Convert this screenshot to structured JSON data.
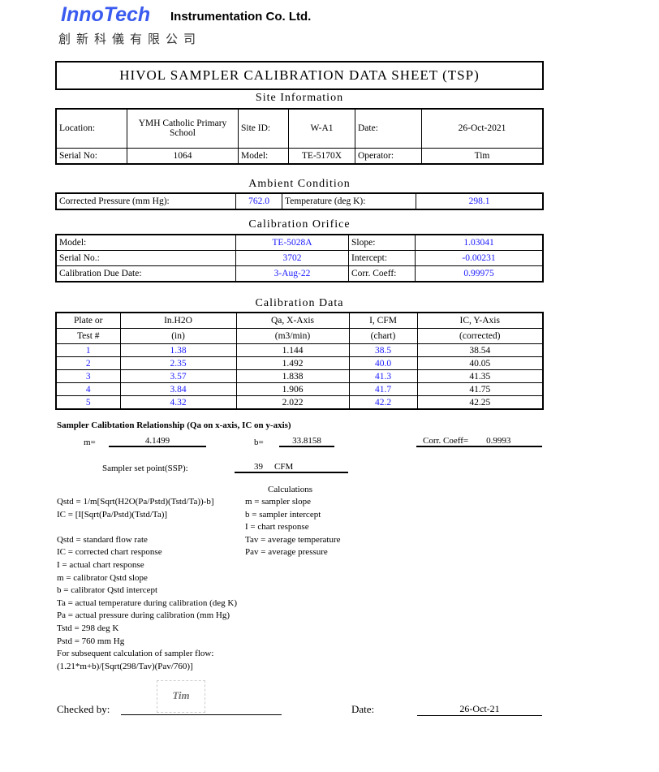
{
  "header": {
    "logo": "InnoTech",
    "company": "Instrumentation Co. Ltd.",
    "company_cn": "創新科儀有限公司"
  },
  "title": "HIVOL SAMPLER CALIBRATION  DATA SHEET (TSP)",
  "site": {
    "heading": "Site Information",
    "location_label": "Location:",
    "location": "YMH Catholic Primary School",
    "site_id_label": "Site ID:",
    "site_id": "W-A1",
    "date_label": "Date:",
    "date": "26-Oct-2021",
    "serial_label": "Serial No:",
    "serial": "1064",
    "model_label": "Model:",
    "model": "TE-5170X",
    "operator_label": "Operator:",
    "operator": "Tim"
  },
  "ambient": {
    "heading": "Ambient Condition",
    "pressure_label": "Corrected Pressure (mm Hg):",
    "pressure": "762.0",
    "temp_label": "Temperature (deg K):",
    "temp": "298.1"
  },
  "orifice": {
    "heading": "Calibration Orifice",
    "model_label": "Model:",
    "model": "TE-5028A",
    "slope_label": "Slope:",
    "slope": "1.03041",
    "serial_label": "Serial No.:",
    "serial": "3702",
    "intercept_label": "Intercept:",
    "intercept": "-0.00231",
    "due_label": "Calibration Due Date:",
    "due": "3-Aug-22",
    "corr_label": "Corr. Coeff:",
    "corr": "0.99975"
  },
  "caldata": {
    "heading": "Calibration Data",
    "headers1": [
      "Plate or",
      "In.H2O",
      "Qa, X-Axis",
      "I, CFM",
      "IC, Y-Axis"
    ],
    "headers2": [
      "Test #",
      "(in)",
      "(m3/min)",
      "(chart)",
      "(corrected)"
    ],
    "rows": [
      [
        "1",
        "1.38",
        "1.144",
        "38.5",
        "38.54"
      ],
      [
        "2",
        "2.35",
        "1.492",
        "40.0",
        "40.05"
      ],
      [
        "3",
        "3.57",
        "1.838",
        "41.3",
        "41.35"
      ],
      [
        "4",
        "3.84",
        "1.906",
        "41.7",
        "41.75"
      ],
      [
        "5",
        "4.32",
        "2.022",
        "42.2",
        "42.25"
      ]
    ]
  },
  "relationship": {
    "heading": "Sampler Calibtation Relationship (Qa on x-axis, IC on y-axis)",
    "m_label": "m=",
    "m": "4.1499",
    "b_label": "b=",
    "b": "33.8158",
    "corr_label": "Corr. Coeff=",
    "corr": "0.9993",
    "ssp_label": "Sampler set point(SSP):",
    "ssp": "39",
    "ssp_unit": "CFM"
  },
  "calc": {
    "heading": "Calculations",
    "left": [
      "Qstd = 1/m[Sqrt(H2O(Pa/Pstd)(Tstd/Ta))-b]",
      "IC = [I[Sqrt(Pa/Pstd)(Tstd/Ta)]",
      "",
      "Qstd = standard flow rate",
      "IC = corrected chart response",
      "I = actual chart response",
      "m  = calibrator Qstd slope",
      "b  = calibrator Qstd intercept",
      "Ta = actual temperature during calibration (deg K)",
      "Pa = actual pressure during calibration (mm Hg)",
      "Tstd = 298 deg K",
      "Pstd = 760 mm Hg",
      "For subsequent calculation of sampler flow:",
      "(1.21*m+b)/[Sqrt(298/Tav)(Pav/760)]"
    ],
    "right": [
      "m   = sampler slope",
      "b   = sampler intercept",
      "I   = chart response",
      "Tav = average temperature",
      "Pav = average pressure"
    ]
  },
  "footer": {
    "checked_label": "Checked by:",
    "signature": "Tim",
    "date_label": "Date:",
    "date": "26-Oct-21"
  }
}
